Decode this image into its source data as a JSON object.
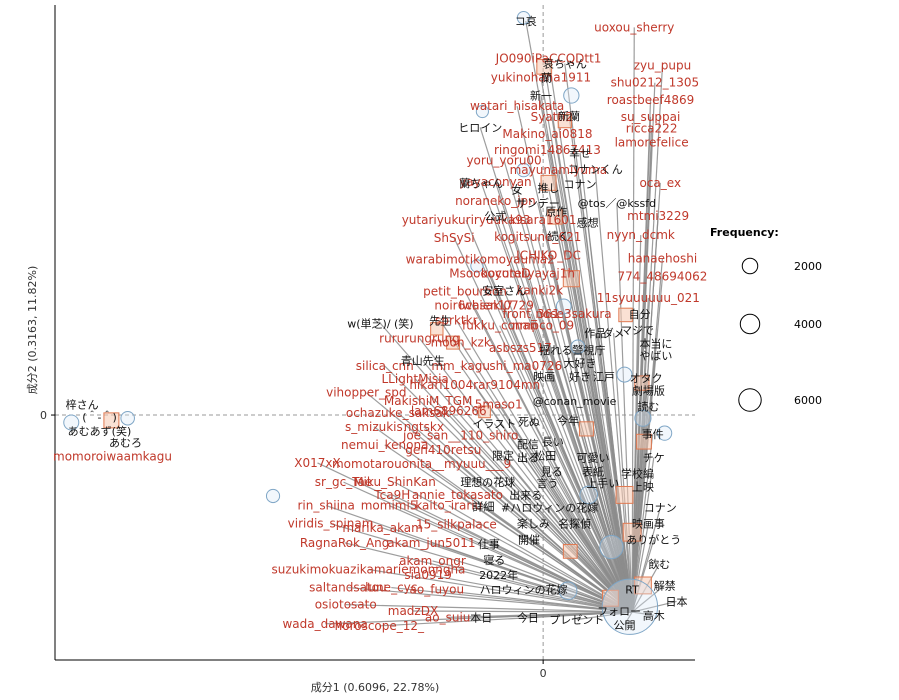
{
  "chart_data": {
    "type": "scatter",
    "title": "",
    "xlabel": "成分1 (0.6096, 22.78%)",
    "ylabel": "成分2 (0.3163, 11.82%)",
    "xlim": [
      -4.5,
      1.4
    ],
    "ylim": [
      -2.3,
      3.85
    ],
    "x_ticks": [
      {
        "value": 0,
        "label": "0"
      }
    ],
    "y_ticks": [
      {
        "value": 0,
        "label": "0"
      }
    ],
    "reference_lines": [
      {
        "axis": "x",
        "value": 0
      },
      {
        "axis": "y",
        "value": 0
      }
    ],
    "legend": {
      "title": "Frequency:",
      "position": "right",
      "entries": [
        {
          "label": "2000",
          "value": 2000
        },
        {
          "label": "4000",
          "value": 4000
        },
        {
          "label": "6000",
          "value": 6000
        }
      ]
    },
    "origin": {
      "x": 0.82,
      "y": -1.85
    },
    "users": [
      {
        "label": "uoxou_sherry",
        "x": 0.84,
        "y": 3.64
      },
      {
        "label": "JO090iPaCCQDtt1",
        "x": 0.05,
        "y": 3.35
      },
      {
        "label": "zyu_pupu",
        "x": 1.1,
        "y": 3.28
      },
      {
        "label": "yukinohana1911",
        "x": -0.02,
        "y": 3.17
      },
      {
        "label": "shu0212_1305",
        "x": 1.03,
        "y": 3.12
      },
      {
        "label": "roastbeef4869",
        "x": 0.99,
        "y": 2.96
      },
      {
        "label": "watari_hisakata",
        "x": -0.24,
        "y": 2.9
      },
      {
        "label": "Syatti2",
        "x": 0.08,
        "y": 2.8
      },
      {
        "label": "su_suppai",
        "x": 0.99,
        "y": 2.8
      },
      {
        "label": "ricca222",
        "x": 1.0,
        "y": 2.69
      },
      {
        "label": "Makino_ai0818",
        "x": 0.04,
        "y": 2.64
      },
      {
        "label": "lamorefelice",
        "x": 1.0,
        "y": 2.56
      },
      {
        "label": "ringomi14867413",
        "x": 0.04,
        "y": 2.49
      },
      {
        "label": "yoru_yoru00",
        "x": -0.36,
        "y": 2.39
      },
      {
        "label": "mayunamiyuma",
        "x": 0.14,
        "y": 2.3
      },
      {
        "label": "yayaconyan",
        "x": -0.44,
        "y": 2.19
      },
      {
        "label": "oca_ex",
        "x": 1.08,
        "y": 2.18
      },
      {
        "label": "noraneko_jpn",
        "x": -0.44,
        "y": 2.01
      },
      {
        "label": "mtmi3229",
        "x": 1.06,
        "y": 1.87
      },
      {
        "label": "yutariyukuriryuuka93",
        "x": -0.71,
        "y": 1.83
      },
      {
        "label": "kisara1601",
        "x": 0.0,
        "y": 1.83
      },
      {
        "label": "nyyn_dcmk",
        "x": 0.9,
        "y": 1.69
      },
      {
        "label": "ShSySi",
        "x": -0.82,
        "y": 1.66
      },
      {
        "label": "kogitsune_621",
        "x": -0.05,
        "y": 1.67
      },
      {
        "label": "ICHIKO_DC",
        "x": 0.05,
        "y": 1.5
      },
      {
        "label": "hanaehoshi",
        "x": 1.1,
        "y": 1.47
      },
      {
        "label": "warabimotikomoyauma2",
        "x": -0.58,
        "y": 1.46
      },
      {
        "label": "MsoooocuteD",
        "x": -0.49,
        "y": 1.33
      },
      {
        "label": "koyomiiyayaj1h",
        "x": -0.14,
        "y": 1.33
      },
      {
        "label": "774_48694062",
        "x": 1.1,
        "y": 1.3
      },
      {
        "label": "petit_bourbon",
        "x": -0.72,
        "y": 1.16
      },
      {
        "label": "kanki2k",
        "x": -0.03,
        "y": 1.17
      },
      {
        "label": "11syuuuuuu_021",
        "x": 0.97,
        "y": 1.1
      },
      {
        "label": "noir6chien17",
        "x": -0.64,
        "y": 1.03
      },
      {
        "label": "iwasaki0729",
        "x": -0.43,
        "y": 1.03
      },
      {
        "label": "front_361",
        "x": -0.11,
        "y": 0.95
      },
      {
        "label": "nose3sakura",
        "x": 0.28,
        "y": 0.95
      },
      {
        "label": "sbrktkr",
        "x": -0.8,
        "y": 0.89
      },
      {
        "label": "fukku_conan",
        "x": -0.4,
        "y": 0.84
      },
      {
        "label": "nmpco_09",
        "x": 0.0,
        "y": 0.84
      },
      {
        "label": "rururungrung",
        "x": -1.14,
        "y": 0.72
      },
      {
        "label": "moon_kzk",
        "x": -0.76,
        "y": 0.68
      },
      {
        "label": "asbszs517",
        "x": -0.21,
        "y": 0.63
      },
      {
        "label": "silica_cnn",
        "x": -1.46,
        "y": 0.46
      },
      {
        "label": "mm_kagu",
        "x": -0.76,
        "y": 0.46
      },
      {
        "label": "shi_ma0726",
        "x": -0.16,
        "y": 0.46
      },
      {
        "label": "LLightMisia",
        "x": -1.18,
        "y": 0.34
      },
      {
        "label": "hikari1004rar9104mn",
        "x": -0.63,
        "y": 0.28
      },
      {
        "label": "vihopper_spd",
        "x": -1.63,
        "y": 0.21
      },
      {
        "label": "MakishiM_TGM",
        "x": -1.06,
        "y": 0.13
      },
      {
        "label": "5maso1",
        "x": -0.41,
        "y": 0.1
      },
      {
        "label": "ochazuke_saksak",
        "x": -1.34,
        "y": 0.02
      },
      {
        "label": "lam6896266",
        "x": -0.87,
        "y": 0.04
      },
      {
        "label": "s_mizukis",
        "x": -1.56,
        "y": -0.11
      },
      {
        "label": "ngtskx",
        "x": -1.1,
        "y": -0.11
      },
      {
        "label": "joe_san__110_shiro",
        "x": -0.76,
        "y": -0.19
      },
      {
        "label": "nemui_kenona",
        "x": -1.46,
        "y": -0.28
      },
      {
        "label": "gen410retsu",
        "x": -0.92,
        "y": -0.33
      },
      {
        "label": "X017xX",
        "x": -2.08,
        "y": -0.45
      },
      {
        "label": "momotarouonita__myuuu___9",
        "x": -1.12,
        "y": -0.46
      },
      {
        "label": "sr_gc_Tae",
        "x": -1.84,
        "y": -0.63
      },
      {
        "label": "Miku_ShinKan",
        "x": -1.37,
        "y": -0.63
      },
      {
        "label": "Tca9H",
        "x": -1.39,
        "y": -0.75
      },
      {
        "label": "annie_tokasato",
        "x": -0.79,
        "y": -0.75
      },
      {
        "label": "rin_shiina",
        "x": -2.0,
        "y": -0.85
      },
      {
        "label": "momimi5",
        "x": -1.42,
        "y": -0.85
      },
      {
        "label": "kaito_irariu",
        "x": -0.87,
        "y": -0.85
      },
      {
        "label": "viridis_spinam",
        "x": -1.96,
        "y": -1.02
      },
      {
        "label": "marika_akam",
        "x": -1.48,
        "y": -1.06
      },
      {
        "label": "15_silkpalace",
        "x": -0.8,
        "y": -1.03
      },
      {
        "label": "RagnaRok_Ang",
        "x": -1.83,
        "y": -1.2
      },
      {
        "label": "akam_jun5011",
        "x": -1.03,
        "y": -1.2
      },
      {
        "label": "akam_ongr",
        "x": -1.02,
        "y": -1.37
      },
      {
        "label": "suzukimokuazikamariemonngha",
        "x": -1.61,
        "y": -1.45
      },
      {
        "label": "sia0919",
        "x": -1.06,
        "y": -1.5
      },
      {
        "label": "saltandsatou",
        "x": -1.8,
        "y": -1.62
      },
      {
        "label": "lune_cyc",
        "x": -1.4,
        "y": -1.62
      },
      {
        "label": "ao_fuyou",
        "x": -0.98,
        "y": -1.64
      },
      {
        "label": "osiotosato",
        "x": -1.82,
        "y": -1.78
      },
      {
        "label": "madzDX",
        "x": -1.2,
        "y": -1.84
      },
      {
        "label": "ao_suiu",
        "x": -0.88,
        "y": -1.9
      },
      {
        "label": "wada_dawana",
        "x": -2.01,
        "y": -1.96
      },
      {
        "label": "horoscope_12_",
        "x": -1.51,
        "y": -1.98
      },
      {
        "label": "momoroiwaamkagu",
        "x": -3.97,
        "y": -0.39
      }
    ],
    "words": [
      {
        "label": "コ哀",
        "x": -0.16,
        "y": 3.7
      },
      {
        "label": "哀ちゃん",
        "x": 0.2,
        "y": 3.3
      },
      {
        "label": "蘭",
        "x": 0.03,
        "y": 3.17
      },
      {
        "label": "新一",
        "x": -0.02,
        "y": 3.0
      },
      {
        "label": "ヒロイン",
        "x": -0.58,
        "y": 2.7
      },
      {
        "label": "新蘭",
        "x": 0.24,
        "y": 2.81
      },
      {
        "label": "幸せ",
        "x": 0.34,
        "y": 2.46
      },
      {
        "label": "コナンくん",
        "x": 0.48,
        "y": 2.31
      },
      {
        "label": "蘭ちゃん",
        "x": -0.57,
        "y": 2.18
      },
      {
        "label": "女",
        "x": -0.24,
        "y": 2.12
      },
      {
        "label": "推し",
        "x": 0.05,
        "y": 2.13
      },
      {
        "label": "コナン",
        "x": 0.34,
        "y": 2.17
      },
      {
        "label": "サンデー",
        "x": -0.05,
        "y": 1.99
      },
      {
        "label": "@tos／@kssfd",
        "x": 0.68,
        "y": 1.99
      },
      {
        "label": "公式",
        "x": -0.44,
        "y": 1.87
      },
      {
        "label": "原作",
        "x": 0.12,
        "y": 1.91
      },
      {
        "label": "感想",
        "x": 0.41,
        "y": 1.81
      },
      {
        "label": "続く",
        "x": 0.14,
        "y": 1.68
      },
      {
        "label": "安室さん",
        "x": -0.36,
        "y": 1.17
      },
      {
        "label": "自分",
        "x": 0.89,
        "y": 0.95
      },
      {
        "label": "w(単芝)/ (笑)",
        "x": -1.5,
        "y": 0.86
      },
      {
        "label": "先生",
        "x": -0.95,
        "y": 0.89
      },
      {
        "label": "作品",
        "x": 0.48,
        "y": 0.77
      },
      {
        "label": "ダメ",
        "x": 0.65,
        "y": 0.77
      },
      {
        "label": "マジで",
        "x": 0.87,
        "y": 0.8
      },
      {
        "label": "本当に",
        "x": 1.04,
        "y": 0.67
      },
      {
        "label": "揺れる警視庁",
        "x": 0.27,
        "y": 0.61
      },
      {
        "label": "やばい",
        "x": 1.04,
        "y": 0.56
      },
      {
        "label": "青山先生",
        "x": -1.11,
        "y": 0.51
      },
      {
        "label": "大好き",
        "x": 0.34,
        "y": 0.49
      },
      {
        "label": "映画",
        "x": 0.01,
        "y": 0.36
      },
      {
        "label": "好き",
        "x": 0.34,
        "y": 0.36
      },
      {
        "label": "江戸",
        "x": 0.56,
        "y": 0.36
      },
      {
        "label": "オタク",
        "x": 0.95,
        "y": 0.35
      },
      {
        "label": "劇場版",
        "x": 0.97,
        "y": 0.23
      },
      {
        "label": "@conan_movie",
        "x": 0.29,
        "y": 0.13
      },
      {
        "label": "読む",
        "x": 0.97,
        "y": 0.08
      },
      {
        "label": "イラスト",
        "x": -0.45,
        "y": -0.08
      },
      {
        "label": "死ぬ",
        "x": -0.13,
        "y": -0.06
      },
      {
        "label": "今年",
        "x": 0.23,
        "y": -0.05
      },
      {
        "label": "事件",
        "x": 1.01,
        "y": -0.18
      },
      {
        "label": "配信",
        "x": -0.14,
        "y": -0.27
      },
      {
        "label": "長い",
        "x": 0.09,
        "y": -0.25
      },
      {
        "label": "限定",
        "x": -0.37,
        "y": -0.38
      },
      {
        "label": "出る",
        "x": -0.14,
        "y": -0.4
      },
      {
        "label": "松田",
        "x": 0.02,
        "y": -0.38
      },
      {
        "label": "可愛い",
        "x": 0.46,
        "y": -0.4
      },
      {
        "label": "チケ",
        "x": 1.02,
        "y": -0.4
      },
      {
        "label": "見る",
        "x": 0.08,
        "y": -0.53
      },
      {
        "label": "表紙",
        "x": 0.46,
        "y": -0.53
      },
      {
        "label": "学校編",
        "x": 0.87,
        "y": -0.55
      },
      {
        "label": "理想の花球",
        "x": -0.51,
        "y": -0.63
      },
      {
        "label": "言う",
        "x": 0.04,
        "y": -0.64
      },
      {
        "label": "上手い",
        "x": 0.55,
        "y": -0.64
      },
      {
        "label": "上映",
        "x": 0.92,
        "y": -0.67
      },
      {
        "label": "出来る",
        "x": -0.16,
        "y": -0.75
      },
      {
        "label": "詳細",
        "x": -0.55,
        "y": -0.86
      },
      {
        "label": "#ハロウィンの花嫁",
        "x": 0.06,
        "y": -0.87
      },
      {
        "label": "コナン",
        "x": 1.08,
        "y": -0.87
      },
      {
        "label": "仕事",
        "x": -0.5,
        "y": -1.21
      },
      {
        "label": "楽しみ",
        "x": -0.09,
        "y": -1.02
      },
      {
        "label": "名探偵",
        "x": 0.29,
        "y": -1.02
      },
      {
        "label": "映画事",
        "x": 0.97,
        "y": -1.02
      },
      {
        "label": "開催",
        "x": -0.13,
        "y": -1.17
      },
      {
        "label": "ありがとう",
        "x": 1.02,
        "y": -1.17
      },
      {
        "label": "寝る",
        "x": -0.45,
        "y": -1.36
      },
      {
        "label": "飲む",
        "x": 1.07,
        "y": -1.4
      },
      {
        "label": "2022年",
        "x": -0.41,
        "y": -1.5
      },
      {
        "label": "ハロウィンの花嫁",
        "x": -0.18,
        "y": -1.64
      },
      {
        "label": "RT",
        "x": 0.82,
        "y": -1.64
      },
      {
        "label": "解禁",
        "x": 1.12,
        "y": -1.6
      },
      {
        "label": "日本",
        "x": 1.23,
        "y": -1.75
      },
      {
        "label": "フォロー",
        "x": 0.7,
        "y": -1.84
      },
      {
        "label": "本日",
        "x": -0.57,
        "y": -1.9
      },
      {
        "label": "今日",
        "x": -0.14,
        "y": -1.9
      },
      {
        "label": "プレゼント",
        "x": 0.31,
        "y": -1.92
      },
      {
        "label": "高木",
        "x": 1.02,
        "y": -1.88
      },
      {
        "label": "公開",
        "x": 0.75,
        "y": -1.97
      },
      {
        "label": "梓さん",
        "x": -4.25,
        "y": 0.1
      },
      {
        "label": "(＾-＾)",
        "x": -4.09,
        "y": -0.02
      },
      {
        "label": "あむあず(笑)",
        "x": -4.09,
        "y": -0.15
      },
      {
        "label": "あむろ",
        "x": -3.85,
        "y": -0.26
      }
    ],
    "word_bubbles": [
      {
        "x": 0.8,
        "y": -1.8,
        "size": 9000
      },
      {
        "x": 0.63,
        "y": -1.24,
        "size": 1100
      },
      {
        "x": 0.23,
        "y": -1.65,
        "size": 500
      },
      {
        "x": 0.42,
        "y": -0.75,
        "size": 500
      },
      {
        "x": 0.92,
        "y": -0.03,
        "size": 380
      },
      {
        "x": 0.75,
        "y": 0.38,
        "size": 300
      },
      {
        "x": 0.19,
        "y": 1.02,
        "size": 280
      },
      {
        "x": -0.18,
        "y": 2.3,
        "size": 200
      },
      {
        "x": -0.56,
        "y": 2.85,
        "size": 140
      },
      {
        "x": 0.26,
        "y": 3.0,
        "size": 320
      },
      {
        "x": -0.18,
        "y": 3.73,
        "size": 160
      },
      {
        "x": -0.61,
        "y": 1.4,
        "size": 150
      },
      {
        "x": -3.83,
        "y": -0.03,
        "size": 210
      },
      {
        "x": -4.35,
        "y": -0.07,
        "size": 300
      },
      {
        "x": -2.49,
        "y": -0.76,
        "size": 190
      },
      {
        "x": 1.12,
        "y": -0.17,
        "size": 250
      },
      {
        "x": 0.32,
        "y": 0.64,
        "size": 220
      }
    ],
    "squares": [
      {
        "x": 0.01,
        "y": 3.27,
        "size": 400
      },
      {
        "x": 0.2,
        "y": 2.76,
        "size": 280
      },
      {
        "x": 0.05,
        "y": 2.18,
        "size": 420
      },
      {
        "x": 0.11,
        "y": 1.86,
        "size": 360
      },
      {
        "x": 0.26,
        "y": 1.28,
        "size": 520
      },
      {
        "x": -0.98,
        "y": 0.81,
        "size": 220
      },
      {
        "x": -0.83,
        "y": 0.68,
        "size": 260
      },
      {
        "x": -0.54,
        "y": 0.03,
        "size": 180
      },
      {
        "x": 0.76,
        "y": 0.94,
        "size": 300
      },
      {
        "x": 0.91,
        "y": 0.3,
        "size": 360
      },
      {
        "x": 0.93,
        "y": -0.25,
        "size": 400
      },
      {
        "x": 0.4,
        "y": -0.13,
        "size": 350
      },
      {
        "x": 0.75,
        "y": -0.75,
        "size": 600
      },
      {
        "x": 0.82,
        "y": -1.1,
        "size": 700
      },
      {
        "x": 0.92,
        "y": -1.6,
        "size": 600
      },
      {
        "x": 0.62,
        "y": -1.72,
        "size": 500
      },
      {
        "x": 0.25,
        "y": -1.28,
        "size": 320
      },
      {
        "x": -3.98,
        "y": -0.05,
        "size": 420
      }
    ]
  }
}
